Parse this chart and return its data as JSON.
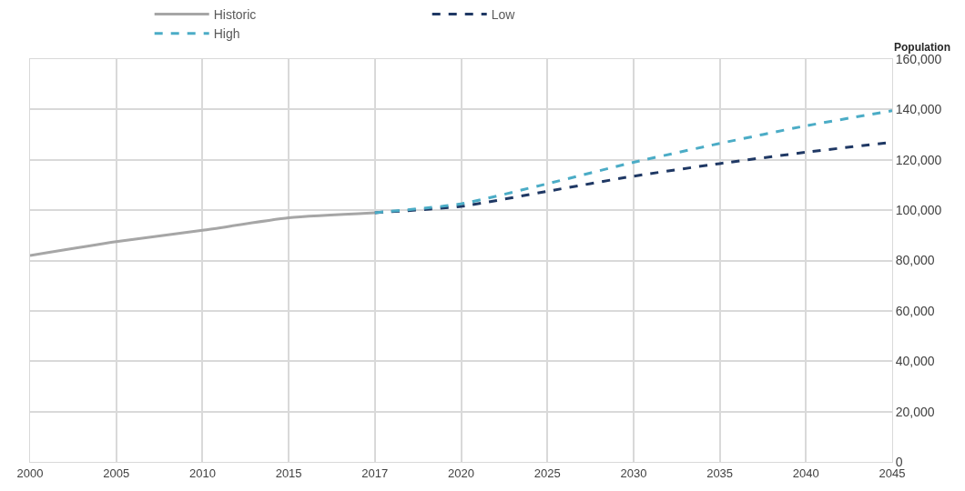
{
  "chart_data": {
    "type": "line",
    "ylabel": "Population",
    "categories": [
      "2000",
      "2005",
      "2010",
      "2015",
      "2017",
      "2020",
      "2025",
      "2030",
      "2035",
      "2040",
      "2045"
    ],
    "series": [
      {
        "name": "Historic",
        "color": "#a6a6a6",
        "line_style": "solid",
        "values": [
          82000,
          87500,
          92000,
          97000,
          99000,
          null,
          null,
          null,
          null,
          null,
          null
        ]
      },
      {
        "name": "Low",
        "color": "#1f3864",
        "line_style": "dashed",
        "values": [
          null,
          null,
          null,
          null,
          99000,
          101500,
          107500,
          113500,
          118500,
          123000,
          127000
        ]
      },
      {
        "name": "High",
        "color": "#4bacc6",
        "line_style": "dashed",
        "values": [
          null,
          null,
          null,
          null,
          99000,
          102500,
          110500,
          119000,
          126500,
          133500,
          139500
        ]
      }
    ],
    "ylim": [
      0,
      160000
    ],
    "yticks": [
      {
        "value": 0,
        "label": "0"
      },
      {
        "value": 20000,
        "label": "20,000"
      },
      {
        "value": 40000,
        "label": "40,000"
      },
      {
        "value": 60000,
        "label": "60,000"
      },
      {
        "value": 80000,
        "label": "80,000"
      },
      {
        "value": 100000,
        "label": "100,000"
      },
      {
        "value": 120000,
        "label": "120,000"
      },
      {
        "value": 140000,
        "label": "140,000"
      },
      {
        "value": 160000,
        "label": "160,000"
      }
    ],
    "grid": true,
    "legend": "top",
    "marker": "none"
  }
}
